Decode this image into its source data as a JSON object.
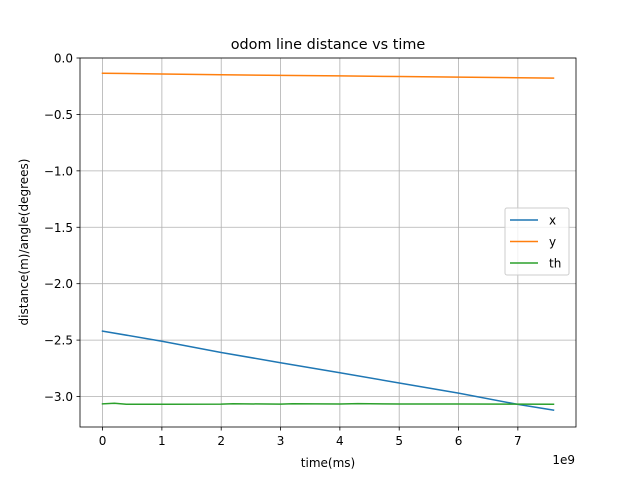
{
  "chart_data": {
    "type": "line",
    "title": "odom line distance vs time",
    "xlabel": "time(ms)",
    "ylabel": "distance(m)/angle(degrees)",
    "x_offset_text": "1e9",
    "xlim": [
      -0.38,
      7.98
    ],
    "ylim": [
      -3.27,
      0.0
    ],
    "xticks": [
      0,
      1,
      2,
      3,
      4,
      5,
      6,
      7
    ],
    "xtick_labels": [
      "0",
      "1",
      "2",
      "3",
      "4",
      "5",
      "6",
      "7"
    ],
    "yticks": [
      0.0,
      -0.5,
      -1.0,
      -1.5,
      -2.0,
      -2.5,
      -3.0
    ],
    "ytick_labels": [
      "0.0",
      "−0.5",
      "−1.0",
      "−1.5",
      "−2.0",
      "−2.5",
      "−3.0"
    ],
    "grid": true,
    "legend_position": "center-right",
    "series": [
      {
        "name": "x",
        "color": "#1f77b4",
        "x": [
          0,
          1,
          2,
          3,
          4,
          5,
          6,
          7,
          7.6
        ],
        "y": [
          -2.42,
          -2.51,
          -2.61,
          -2.7,
          -2.79,
          -2.88,
          -2.97,
          -3.07,
          -3.12
        ]
      },
      {
        "name": "y",
        "color": "#ff7f0e",
        "x": [
          0,
          1,
          2,
          3,
          4,
          5,
          6,
          7,
          7.6
        ],
        "y": [
          -0.135,
          -0.142,
          -0.148,
          -0.154,
          -0.159,
          -0.164,
          -0.169,
          -0.175,
          -0.178
        ]
      },
      {
        "name": "th",
        "color": "#2ca02c",
        "x": [
          0,
          0.2,
          0.4,
          1,
          2,
          2.2,
          3,
          3.2,
          4,
          4.3,
          5,
          6,
          7,
          7.6
        ],
        "y": [
          -3.065,
          -3.06,
          -3.068,
          -3.068,
          -3.067,
          -3.064,
          -3.067,
          -3.064,
          -3.066,
          -3.063,
          -3.066,
          -3.066,
          -3.067,
          -3.069
        ]
      }
    ]
  }
}
